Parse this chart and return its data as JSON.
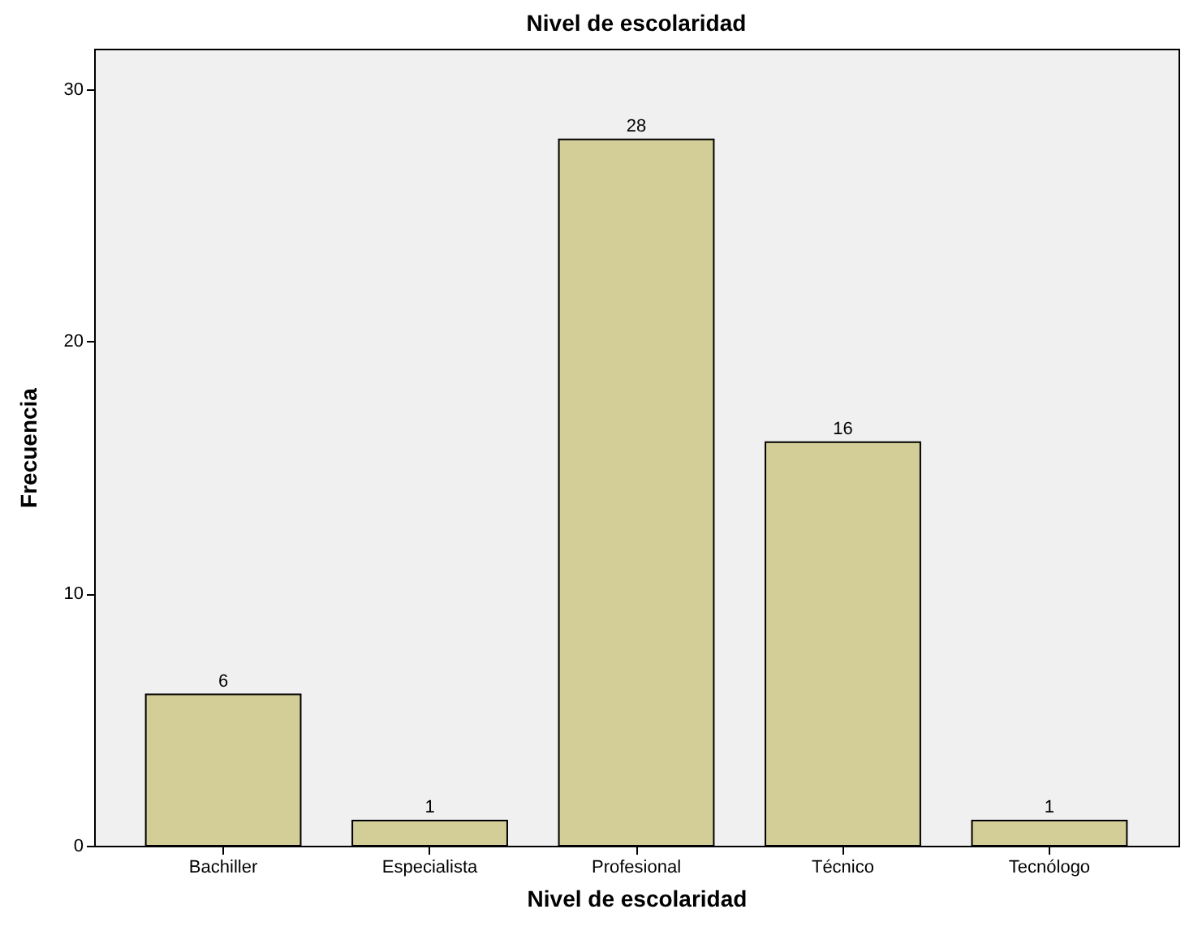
{
  "chart_data": {
    "type": "bar",
    "title": "Nivel de escolaridad",
    "xlabel": "Nivel de escolaridad",
    "ylabel": "Frecuencia",
    "categories": [
      "Bachiller",
      "Especialista",
      "Profesional",
      "Técnico",
      "Tecnólogo"
    ],
    "values": [
      6,
      1,
      28,
      16,
      1
    ],
    "color": "#d3ce97",
    "ylim": [
      0,
      31.6
    ],
    "yticks": [
      0,
      10,
      20,
      30
    ],
    "grid": false,
    "data_labels": true
  }
}
